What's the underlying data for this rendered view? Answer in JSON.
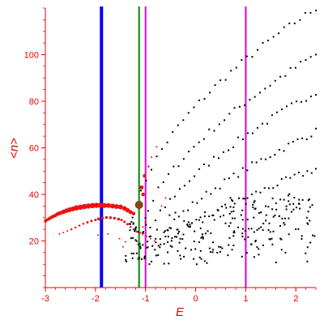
{
  "chart_data": {
    "type": "scatter",
    "title": "",
    "xlabel": "E",
    "ylabel": "<n>",
    "xlim": [
      -3,
      2.4
    ],
    "ylim": [
      0,
      120
    ],
    "x_ticks": [
      -3,
      -2,
      -1,
      0,
      1,
      2
    ],
    "y_ticks": [
      20,
      40,
      60,
      80,
      100
    ],
    "x_tick_labels": [
      "-3",
      "-2",
      "-1",
      "0",
      "1",
      "2"
    ],
    "y_tick_labels": [
      "20",
      "40",
      "60",
      "80",
      "100"
    ],
    "grid": false,
    "legend": "none",
    "colors": {
      "axis": "#ee0000",
      "black_points": "#000000",
      "red_points": "#ee1111",
      "blue_line": "#0000ee",
      "green_line": "#008800",
      "magenta_line": "#dd00dd",
      "marker": "#8b4513"
    },
    "vertical_lines": [
      {
        "x": -1.88,
        "color": "#0000ee"
      },
      {
        "x": -1.13,
        "color": "#008800"
      },
      {
        "x": -1.0,
        "color": "#dd00dd"
      },
      {
        "x": 1.0,
        "color": "#dd00dd"
      }
    ],
    "marker_point": {
      "x": -1.13,
      "y": 35.5,
      "color": "#8b4513"
    },
    "red_series": [
      [
        -3.0,
        28.5,
        3.5
      ],
      [
        -2.97,
        29.0,
        3.5
      ],
      [
        -2.93,
        29.5,
        4
      ],
      [
        -2.89,
        30.0,
        4
      ],
      [
        -2.85,
        30.5,
        4.5
      ],
      [
        -2.8,
        31.0,
        4.5
      ],
      [
        -2.75,
        31.6,
        5
      ],
      [
        -2.7,
        32.0,
        5
      ],
      [
        -2.64,
        32.5,
        5.5
      ],
      [
        -2.58,
        33.0,
        5.5
      ],
      [
        -2.52,
        33.4,
        6
      ],
      [
        -2.45,
        33.8,
        6
      ],
      [
        -2.38,
        34.2,
        6.5
      ],
      [
        -2.3,
        34.5,
        6.5
      ],
      [
        -2.22,
        34.8,
        6.5
      ],
      [
        -2.14,
        35.0,
        6.5
      ],
      [
        -2.06,
        35.2,
        6.5
      ],
      [
        -1.98,
        35.3,
        6.5
      ],
      [
        -1.9,
        35.3,
        6.5
      ],
      [
        -1.82,
        35.2,
        6
      ],
      [
        -1.74,
        35.2,
        6
      ],
      [
        -1.66,
        35.0,
        6
      ],
      [
        -1.58,
        34.8,
        6
      ],
      [
        -1.5,
        34.6,
        6
      ],
      [
        -1.42,
        34.0,
        5.5
      ],
      [
        -1.36,
        33.2,
        5.5
      ],
      [
        -1.3,
        32.4,
        5
      ],
      [
        -1.24,
        31.8,
        4.5
      ],
      [
        -2.72,
        23.0,
        2
      ],
      [
        -2.64,
        23.6,
        2
      ],
      [
        -2.56,
        24.3,
        2
      ],
      [
        -2.48,
        25.0,
        2.5
      ],
      [
        -2.4,
        25.8,
        2.5
      ],
      [
        -2.32,
        26.6,
        2.5
      ],
      [
        -2.24,
        27.4,
        2.5
      ],
      [
        -2.16,
        28.0,
        3
      ],
      [
        -2.08,
        28.6,
        3
      ],
      [
        -2.0,
        29.0,
        3
      ],
      [
        -1.94,
        29.5,
        3.5
      ],
      [
        -1.86,
        29.8,
        3.5
      ],
      [
        -1.78,
        30.1,
        3.5
      ],
      [
        -1.7,
        30.0,
        3.5
      ],
      [
        -1.62,
        29.8,
        3.5
      ],
      [
        -1.54,
        29.4,
        3.5
      ],
      [
        -1.48,
        29.0,
        3
      ],
      [
        -1.42,
        28.2,
        3
      ],
      [
        -1.36,
        27.2,
        3
      ],
      [
        -1.3,
        26.0,
        2.5
      ],
      [
        -1.24,
        25.0,
        2.5
      ],
      [
        -1.18,
        24.0,
        2.5
      ],
      [
        -1.12,
        23.5,
        2.5
      ],
      [
        -1.06,
        22.8,
        2
      ],
      [
        -0.98,
        22.0,
        2
      ],
      [
        -0.9,
        21.0,
        2
      ],
      [
        -0.82,
        20.0,
        2
      ],
      [
        -1.95,
        22.5,
        2
      ],
      [
        -1.75,
        23.0,
        2
      ],
      [
        -1.52,
        21.0,
        2
      ],
      [
        -1.4,
        19.6,
        2
      ],
      [
        -1.45,
        17.5,
        2
      ],
      [
        -1.1,
        23.5,
        2
      ],
      [
        -1.05,
        26.0,
        2
      ],
      [
        -1.0,
        28.0,
        2.5
      ],
      [
        -1.05,
        40.0,
        4.5
      ],
      [
        -1.08,
        43.0,
        5
      ],
      [
        -1.02,
        48.0,
        4.5
      ],
      [
        -0.94,
        52.0,
        2.5
      ],
      [
        -0.88,
        56.0,
        2
      ],
      [
        -0.78,
        60.5,
        2
      ],
      [
        -0.6,
        38.5,
        2
      ],
      [
        -0.68,
        35.0,
        2
      ]
    ],
    "black_series": {
      "curves": [
        {
          "x0": -1.2,
          "y0": 27,
          "x1": 2.4,
          "y1": 120,
          "k": 0.55
        },
        {
          "x0": -1.05,
          "y0": 24,
          "x1": 2.4,
          "y1": 100,
          "k": 0.6
        },
        {
          "x0": -0.9,
          "y0": 22,
          "x1": 2.4,
          "y1": 84,
          "k": 0.65
        },
        {
          "x0": -0.7,
          "y0": 20,
          "x1": 2.4,
          "y1": 67,
          "k": 0.7
        },
        {
          "x0": -0.5,
          "y0": 19,
          "x1": 2.4,
          "y1": 51,
          "k": 0.75
        }
      ]
    }
  }
}
